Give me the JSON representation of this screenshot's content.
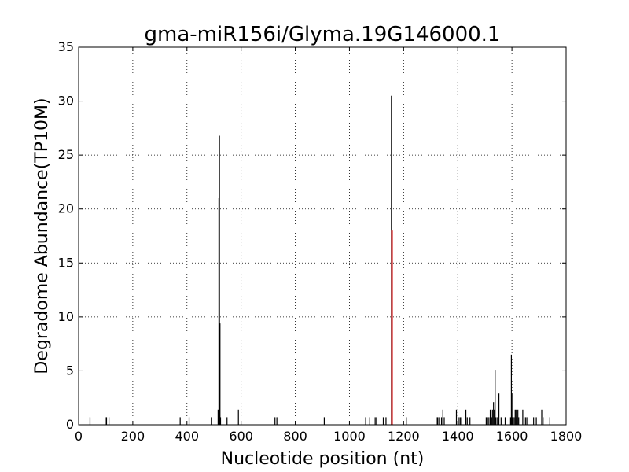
{
  "chart_data": {
    "type": "bar",
    "title": "gma-miR156i/Glyma.19G146000.1",
    "xlabel": "Nucleotide position (nt)",
    "ylabel": "Degradome Abundance(TP10M)",
    "xlim": [
      0,
      1800
    ],
    "ylim": [
      0,
      35
    ],
    "xticks": [
      0,
      200,
      400,
      600,
      800,
      1000,
      1200,
      1400,
      1600,
      1800
    ],
    "yticks": [
      0,
      5,
      10,
      15,
      20,
      25,
      30,
      35
    ],
    "grid": true,
    "series": [
      {
        "color": "#000000",
        "x": [
          42,
          98,
          103,
          112,
          375,
          408,
          490,
          515,
          518,
          520,
          522,
          524,
          548,
          590,
          725,
          732,
          907,
          1060,
          1075,
          1095,
          1100,
          1125,
          1135,
          1155,
          1210,
          1320,
          1325,
          1330,
          1340,
          1345,
          1350,
          1395,
          1405,
          1410,
          1415,
          1430,
          1435,
          1445,
          1505,
          1510,
          1515,
          1520,
          1525,
          1528,
          1532,
          1535,
          1538,
          1540,
          1545,
          1552,
          1560,
          1575,
          1595,
          1598,
          1600,
          1602,
          1608,
          1612,
          1615,
          1618,
          1622,
          1625,
          1640,
          1650,
          1655,
          1680,
          1690,
          1710,
          1715,
          1740
        ],
        "values": [
          0.7,
          0.7,
          0.7,
          0.7,
          0.7,
          0.7,
          0.7,
          1.4,
          21.0,
          26.8,
          9.4,
          0.7,
          0.7,
          1.4,
          0.7,
          0.7,
          0.7,
          0.7,
          0.7,
          0.7,
          0.7,
          0.7,
          0.7,
          30.5,
          0.7,
          0.7,
          0.7,
          0.7,
          0.7,
          1.4,
          0.7,
          1.4,
          0.7,
          0.7,
          0.7,
          1.4,
          0.7,
          0.7,
          0.7,
          0.7,
          0.7,
          1.4,
          0.7,
          1.4,
          2.1,
          1.4,
          5.1,
          0.7,
          0.7,
          2.9,
          0.7,
          0.7,
          0.7,
          6.5,
          2.9,
          0.7,
          0.7,
          1.4,
          1.4,
          0.7,
          1.4,
          0.7,
          1.4,
          0.7,
          0.7,
          0.7,
          0.7,
          1.4,
          0.7,
          0.7
        ]
      },
      {
        "color": "#d62728",
        "x": [
          1157
        ],
        "values": [
          18.0
        ]
      }
    ]
  }
}
